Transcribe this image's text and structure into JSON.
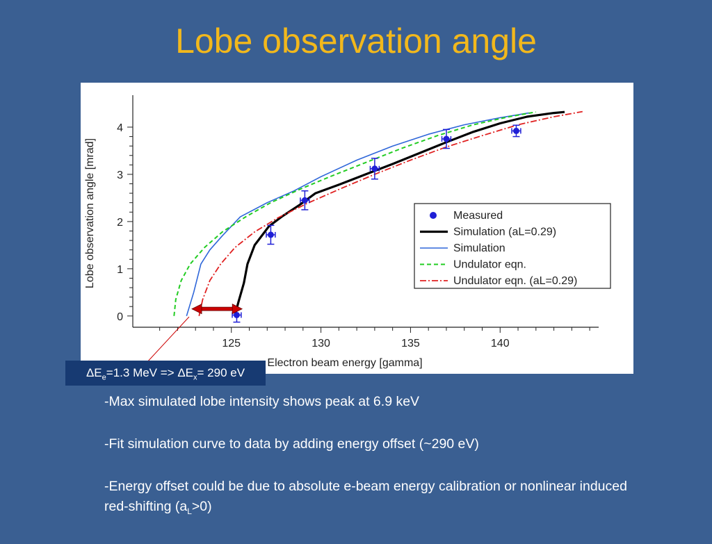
{
  "slide": {
    "title": "Lobe observation angle",
    "annotation": {
      "prefix": "ΔE",
      "sub1": "e",
      "mid": "=1.3 MeV => ΔE",
      "sub2": "x",
      "suffix": "= 290 eV"
    },
    "bullets": [
      {
        "text": "-Max simulated lobe intensity shows peak at 6.9 keV"
      },
      {
        "text": "-Fit simulation curve to data by adding energy offset (~290 eV)"
      },
      {
        "text": "-Energy offset could be due to absolute e-beam energy calibration or nonlinear induced red-shifting (a",
        "sub": "L",
        "tail": ">0)"
      }
    ]
  },
  "colors": {
    "background": "#3a5f92",
    "title": "#f2b81c",
    "measured": "#1f1fd6",
    "sim_al": "#000000",
    "sim": "#2e66d9",
    "und": "#22cc22",
    "und_al": "#e02020",
    "arrow": "#cc0000"
  },
  "chart_data": {
    "type": "line",
    "xlabel": "Electron beam energy [gamma]",
    "ylabel": "Lobe observation angle [mrad]",
    "xlim": [
      119.5,
      145.5
    ],
    "ylim": [
      -0.15,
      4.5
    ],
    "xticks": [
      125,
      130,
      135,
      140
    ],
    "yticks": [
      0,
      1,
      2,
      3,
      4
    ],
    "legend_position": "lower-right",
    "series": [
      {
        "key": "measured",
        "name": "Measured",
        "style": "points",
        "x": [
          125.3,
          127.2,
          129.1,
          133.0,
          137.0,
          140.9
        ],
        "y": [
          0.02,
          1.72,
          2.45,
          3.12,
          3.75,
          3.92
        ],
        "yerr": [
          0.15,
          0.2,
          0.2,
          0.22,
          0.2,
          0.12
        ],
        "xerr": [
          0.25,
          0.25,
          0.25,
          0.25,
          0.25,
          0.25
        ]
      },
      {
        "key": "sim_al",
        "name": "Simulation (aL=0.29)",
        "style": "solid-thick",
        "x": [
          125.2,
          125.4,
          125.7,
          125.9,
          126.3,
          127.1,
          127.8,
          128.8,
          129.7,
          131.0,
          132.5,
          134.0,
          135.5,
          137.0,
          138.5,
          140.0,
          141.5,
          143.0,
          143.6
        ],
        "y": [
          0.02,
          0.3,
          0.7,
          1.1,
          1.5,
          1.9,
          2.1,
          2.35,
          2.6,
          2.78,
          3.0,
          3.22,
          3.45,
          3.68,
          3.9,
          4.08,
          4.22,
          4.3,
          4.32
        ]
      },
      {
        "key": "sim",
        "name": "Simulation",
        "style": "solid",
        "x": [
          122.5,
          122.9,
          123.3,
          123.8,
          124.5,
          125.5,
          127.0,
          128.5,
          130.0,
          132.0,
          134.0,
          136.0,
          138.0,
          140.0,
          141.6
        ],
        "y": [
          0.0,
          0.5,
          1.1,
          1.4,
          1.7,
          2.1,
          2.4,
          2.65,
          2.95,
          3.3,
          3.6,
          3.85,
          4.05,
          4.2,
          4.3
        ]
      },
      {
        "key": "und",
        "name": "Undulator eqn.",
        "style": "dashed",
        "x": [
          121.8,
          121.9,
          122.2,
          122.7,
          123.5,
          124.5,
          125.8,
          127.2,
          128.8,
          130.5,
          132.5,
          134.5,
          136.5,
          138.5,
          140.5,
          142.0
        ],
        "y": [
          0.0,
          0.35,
          0.75,
          1.1,
          1.45,
          1.78,
          2.1,
          2.4,
          2.68,
          2.95,
          3.25,
          3.55,
          3.82,
          4.05,
          4.22,
          4.32
        ]
      },
      {
        "key": "und_al",
        "name": "Undulator eqn. (aL=0.29)",
        "style": "dashdot",
        "x": [
          123.2,
          123.4,
          123.8,
          124.4,
          125.2,
          126.3,
          127.6,
          129.2,
          131.0,
          133.0,
          135.0,
          137.0,
          139.0,
          141.0,
          143.0,
          144.6
        ],
        "y": [
          0.0,
          0.35,
          0.75,
          1.1,
          1.45,
          1.78,
          2.08,
          2.38,
          2.68,
          3.0,
          3.3,
          3.58,
          3.82,
          4.05,
          4.22,
          4.33
        ]
      }
    ],
    "arrow": {
      "x_from": 125.6,
      "x_to": 122.8,
      "y": 0.15
    }
  }
}
